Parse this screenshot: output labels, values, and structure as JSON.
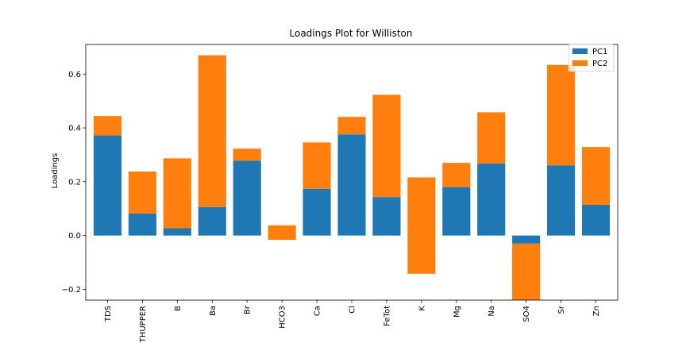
{
  "chart_data": {
    "type": "bar",
    "stacked": true,
    "title": "Loadings Plot for Williston",
    "xlabel": "",
    "ylabel": "Loadings",
    "ylim": [
      -0.24,
      0.71
    ],
    "yticks": [
      -0.2,
      0.0,
      0.2,
      0.4,
      0.6
    ],
    "ytick_labels": [
      "−0.2",
      "0.0",
      "0.2",
      "0.4",
      "0.6"
    ],
    "grid": false,
    "legend_position": "top-right",
    "categories": [
      "TDS",
      "THUPPER",
      "B",
      "Ba",
      "Br",
      "HCO3",
      "Ca",
      "Cl",
      "FeTot",
      "K",
      "Mg",
      "Na",
      "SO4",
      "Sr",
      "Zn"
    ],
    "series": [
      {
        "name": "PC1",
        "color": "#1f77b4",
        "values": [
          0.372,
          0.082,
          0.027,
          0.106,
          0.278,
          0.0,
          0.174,
          0.376,
          0.143,
          0.0,
          0.18,
          0.268,
          -0.03,
          0.261,
          0.114
        ]
      },
      {
        "name": "PC2",
        "color": "#ff7f0e",
        "values": [
          0.072,
          0.156,
          0.26,
          0.564,
          0.045,
          0.038,
          0.172,
          0.065,
          0.38,
          0.216,
          0.09,
          0.19,
          -0.31,
          0.373,
          0.215
        ],
        "bottoms": [
          0.372,
          0.082,
          0.027,
          0.106,
          0.278,
          0.0,
          0.174,
          0.376,
          0.143,
          0.0,
          0.18,
          0.268,
          -0.03,
          0.261,
          0.114
        ],
        "negative_values": [
          0,
          0,
          0,
          0,
          0,
          -0.016,
          0,
          0,
          0,
          -0.142,
          0,
          0,
          0,
          0,
          0
        ]
      }
    ]
  }
}
